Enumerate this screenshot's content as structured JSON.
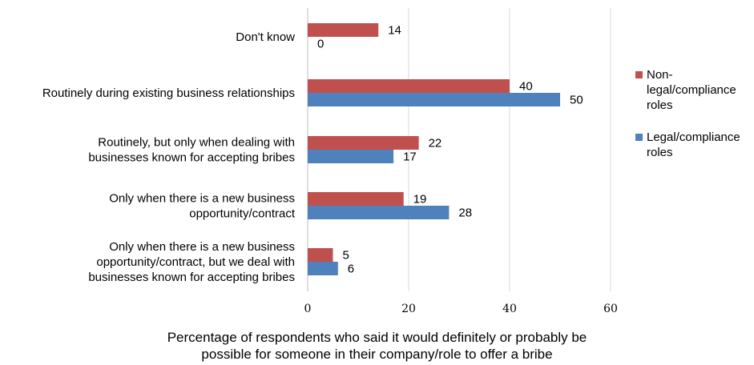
{
  "chart_data": {
    "type": "bar",
    "orientation": "horizontal",
    "categories": [
      [
        "Don't know"
      ],
      [
        "Routinely during existing business relationships"
      ],
      [
        "Routinely, but only when dealing with",
        "businesses known for accepting bribes"
      ],
      [
        "Only when there is a new business",
        "opportunity/contract"
      ],
      [
        "Only when there is a new business",
        "opportunity/contract, but we deal with",
        "businesses known for accepting bribes"
      ]
    ],
    "series": [
      {
        "name": "Non-legal/compliance roles",
        "legend_lines": [
          "Non-",
          "legal/compliance",
          "roles"
        ],
        "color": "#c0504d",
        "values": [
          14,
          40,
          22,
          19,
          5
        ]
      },
      {
        "name": "Legal/compliance roles",
        "legend_lines": [
          "Legal/compliance",
          "roles"
        ],
        "color": "#4f81bd",
        "values": [
          0,
          50,
          17,
          28,
          6
        ]
      }
    ],
    "xlim": [
      0,
      60
    ],
    "xticks": [
      "0",
      "20",
      "40",
      "60"
    ],
    "xlabel": [
      "Percentage of respondents who said it would definitely or probably be",
      "possible for someone in their company/role to offer a bribe"
    ],
    "grid": "vertical",
    "gridline_color": "#d9d9d9",
    "legend_position": "right"
  }
}
